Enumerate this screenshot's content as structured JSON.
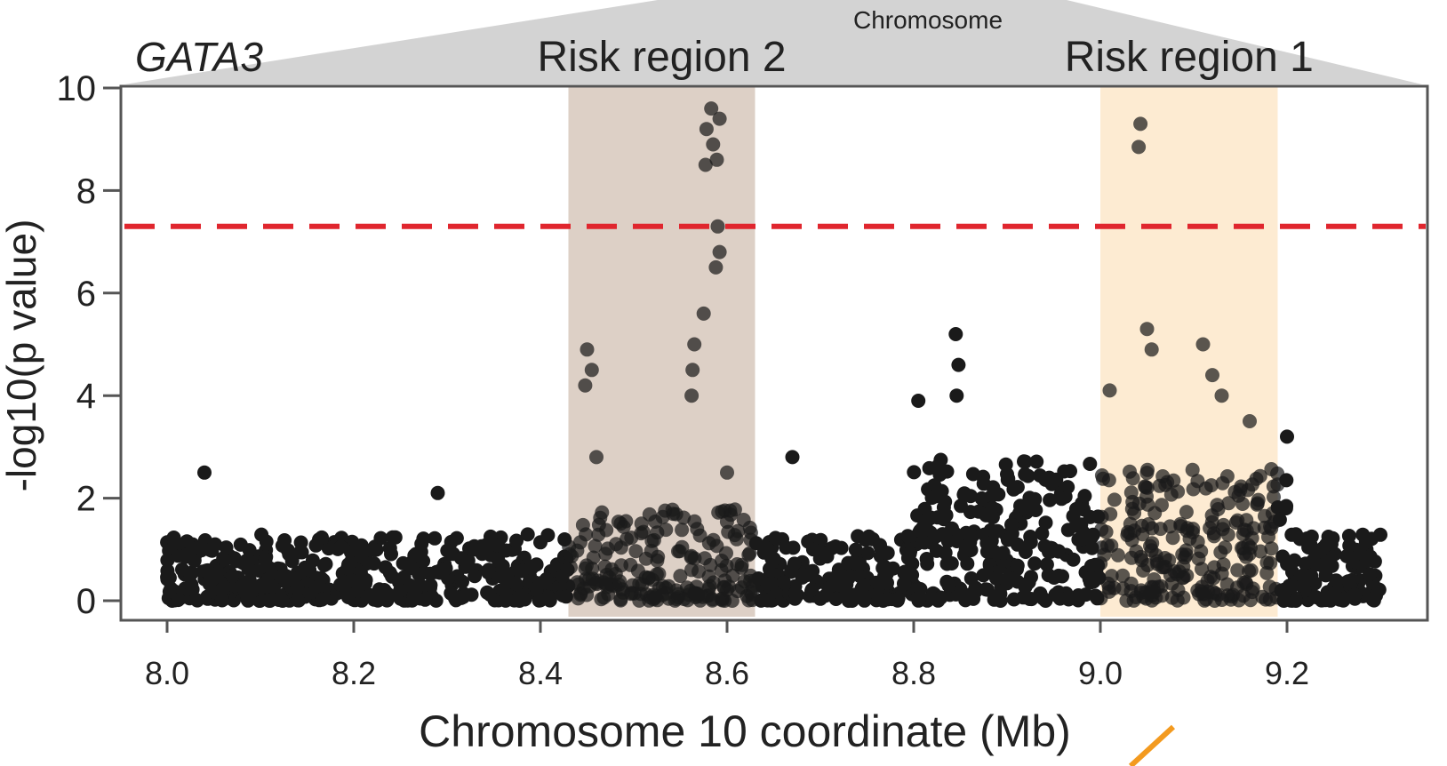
{
  "chart_data": {
    "type": "scatter",
    "title": "Chromosome",
    "xlabel": "Chromosome 10 coordinate (Mb)",
    "ylabel": "-log10(p value)",
    "xlim": [
      7.95,
      9.35
    ],
    "ylim": [
      0,
      10
    ],
    "xticks": [
      8.0,
      8.2,
      8.4,
      8.6,
      8.8,
      9.0,
      9.2
    ],
    "xtick_labels": [
      "8.0",
      "8.2",
      "8.4",
      "8.6",
      "8.8",
      "9.0",
      "9.2"
    ],
    "yticks": [
      0,
      2,
      4,
      6,
      8,
      10
    ],
    "ytick_labels": [
      "0",
      "2",
      "4",
      "6",
      "8",
      "10"
    ],
    "significance_threshold": 7.3,
    "threshold_color": "#e0262e",
    "point_color": "#1a1a1a",
    "gene_label": {
      "text": "GATA3",
      "color": "#1a9bd7"
    },
    "regions": [
      {
        "name": "Risk region 2",
        "start": 8.43,
        "end": 8.63,
        "fill": "#ddd0c6",
        "text_color": "#7b5a3e"
      },
      {
        "name": "Risk region 1",
        "start": 9.0,
        "end": 9.19,
        "fill": "#fdebd2",
        "text_color": "#f08c1a"
      }
    ],
    "notable_points": [
      {
        "x": 8.583,
        "y": 9.6
      },
      {
        "x": 8.592,
        "y": 9.4
      },
      {
        "x": 8.578,
        "y": 9.2
      },
      {
        "x": 8.585,
        "y": 8.9
      },
      {
        "x": 8.589,
        "y": 8.6
      },
      {
        "x": 8.577,
        "y": 8.5
      },
      {
        "x": 9.043,
        "y": 9.3
      },
      {
        "x": 9.041,
        "y": 8.85
      },
      {
        "x": 8.59,
        "y": 7.3
      },
      {
        "x": 8.592,
        "y": 6.8
      },
      {
        "x": 8.588,
        "y": 6.5
      },
      {
        "x": 8.575,
        "y": 5.6
      },
      {
        "x": 8.565,
        "y": 5.0
      },
      {
        "x": 8.563,
        "y": 4.5
      },
      {
        "x": 8.562,
        "y": 4.0
      },
      {
        "x": 8.45,
        "y": 4.9
      },
      {
        "x": 8.455,
        "y": 4.5
      },
      {
        "x": 8.448,
        "y": 4.2
      },
      {
        "x": 8.845,
        "y": 5.2
      },
      {
        "x": 8.848,
        "y": 4.6
      },
      {
        "x": 8.846,
        "y": 4.0
      },
      {
        "x": 8.805,
        "y": 3.9
      },
      {
        "x": 9.05,
        "y": 5.3
      },
      {
        "x": 9.055,
        "y": 4.9
      },
      {
        "x": 9.01,
        "y": 4.1
      },
      {
        "x": 9.11,
        "y": 5.0
      },
      {
        "x": 9.12,
        "y": 4.4
      },
      {
        "x": 9.13,
        "y": 4.0
      },
      {
        "x": 9.16,
        "y": 3.5
      },
      {
        "x": 9.2,
        "y": 3.2
      },
      {
        "x": 8.04,
        "y": 2.5
      },
      {
        "x": 8.29,
        "y": 2.1
      },
      {
        "x": 8.67,
        "y": 2.8
      },
      {
        "x": 8.6,
        "y": 2.5
      },
      {
        "x": 8.46,
        "y": 2.8
      }
    ]
  }
}
